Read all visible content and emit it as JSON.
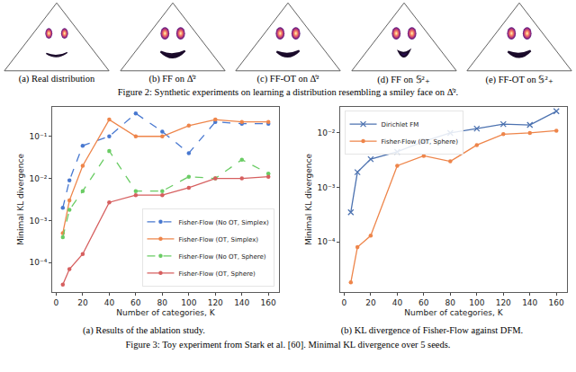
{
  "figure2": {
    "panels": [
      "(a) Real distribution",
      "(b) FF on Δ̊²",
      "(c) FF-OT on Δ̊²",
      "(d) FF on 𝕊²₊",
      "(e) FF-OT on 𝕊²₊"
    ],
    "caption": "Figure 2: Synthetic experiments on learning a distribution resembling a smiley face on Δ̊²."
  },
  "chart_data": [
    {
      "type": "line",
      "x_label": "Number of categories, K",
      "y_label": "Minimal KL divergence",
      "x": [
        5,
        10,
        20,
        40,
        60,
        80,
        100,
        120,
        140,
        160
      ],
      "xlim": [
        -3,
        168
      ],
      "xticks": [
        0,
        20,
        40,
        60,
        80,
        100,
        120,
        140,
        160
      ],
      "ylim": [
        2e-05,
        0.5
      ],
      "yticks": [
        {
          "value": 0.0001,
          "label": "10⁻⁴"
        },
        {
          "value": 0.001,
          "label": "10⁻³"
        },
        {
          "value": 0.01,
          "label": "10⁻²"
        },
        {
          "value": 0.1,
          "label": "10⁻¹"
        }
      ],
      "log": "y",
      "grid": false,
      "legend": "lower right",
      "series": [
        {
          "name": "Fisher-Flow (No OT, Simplex)",
          "color": "#4878d0",
          "marker": "circle",
          "line_style": "dashed",
          "values": [
            0.002,
            0.009,
            0.06,
            0.1,
            0.35,
            0.13,
            0.04,
            0.22,
            0.2,
            0.2
          ]
        },
        {
          "name": "Fisher-Flow (OT, Simplex)",
          "color": "#ee854a",
          "marker": "circle",
          "line_style": "solid",
          "values": [
            0.0005,
            0.003,
            0.02,
            0.25,
            0.1,
            0.1,
            0.18,
            0.25,
            0.22,
            0.22
          ]
        },
        {
          "name": "Fisher-Flow (No OT, Sphere)",
          "color": "#6acc64",
          "marker": "circle",
          "line_style": "dashed",
          "values": [
            0.0004,
            0.0018,
            0.005,
            0.045,
            0.005,
            0.005,
            0.011,
            0.01,
            0.028,
            0.013
          ]
        },
        {
          "name": "Fisher-Flow (OT, Sphere)",
          "color": "#d65f5f",
          "marker": "circle",
          "line_style": "solid",
          "values": [
            3e-05,
            7e-05,
            0.00016,
            0.0027,
            0.004,
            0.004,
            0.006,
            0.01,
            0.01,
            0.011
          ]
        }
      ]
    },
    {
      "type": "line",
      "x_label": "Number of categories, K",
      "y_label": "Minimal KL divergence",
      "x": [
        5,
        10,
        20,
        40,
        60,
        80,
        100,
        120,
        140,
        160
      ],
      "xlim": [
        -3,
        168
      ],
      "xticks": [
        0,
        20,
        40,
        60,
        80,
        100,
        120,
        140,
        160
      ],
      "ylim": [
        1.2e-05,
        0.03
      ],
      "yticks": [
        {
          "value": 0.0001,
          "label": "10⁻⁴"
        },
        {
          "value": 0.001,
          "label": "10⁻³"
        },
        {
          "value": 0.01,
          "label": "10⁻²"
        }
      ],
      "log": "y",
      "grid": false,
      "legend": "upper left",
      "series": [
        {
          "name": "Dirichlet FM",
          "color": "#4c72b0",
          "marker": "x",
          "line_style": "solid",
          "values": [
            0.00035,
            0.0019,
            0.0033,
            0.0045,
            0.007,
            0.01,
            0.012,
            0.0145,
            0.014,
            0.025
          ]
        },
        {
          "name": "Fisher-Flow (OT, Sphere)",
          "color": "#ee854a",
          "marker": "circle",
          "line_style": "solid",
          "values": [
            1.8e-05,
            8e-05,
            0.00013,
            0.0025,
            0.0038,
            0.003,
            0.006,
            0.0095,
            0.01,
            0.011
          ]
        }
      ]
    }
  ],
  "figure3": {
    "subcaptions": [
      "(a) Results of the ablation study.",
      "(b) KL divergence of Fisher-Flow against DFM."
    ],
    "caption": "Figure 3: Toy experiment from Stark et al. [60]. Minimal KL divergence over 5 seeds."
  }
}
